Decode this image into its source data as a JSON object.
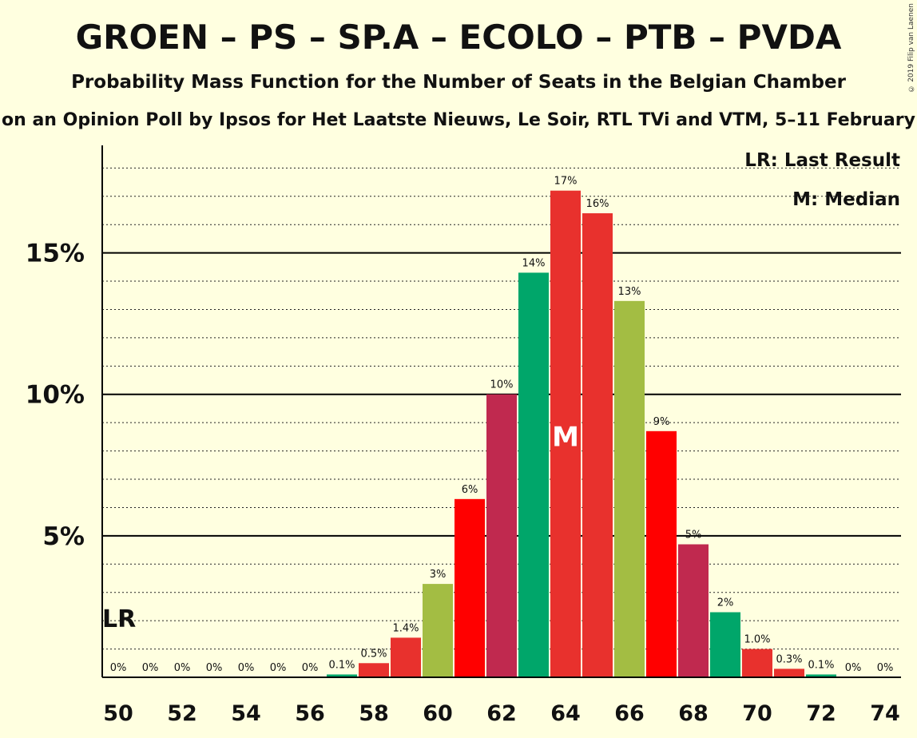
{
  "chart_data": {
    "type": "bar",
    "title": "GROEN – PS – SP.A – ECOLO – PTB – PVDA",
    "subtitle": "Probability Mass Function for the Number of Seats in the Belgian Chamber",
    "source_line": "on an Opinion Poll by Ipsos for Het Laatste Nieuws, Le Soir, RTL TVi and VTM, 5–11 February",
    "copyright": "© 2019 Filip van Laenen",
    "legend": [
      {
        "key": "LR",
        "text": "LR: Last Result"
      },
      {
        "key": "M",
        "text": "M: Median"
      }
    ],
    "x": [
      50,
      51,
      52,
      53,
      54,
      55,
      56,
      57,
      58,
      59,
      60,
      61,
      62,
      63,
      64,
      65,
      66,
      67,
      68,
      69,
      70,
      71,
      72,
      73,
      74
    ],
    "values": [
      0,
      0,
      0,
      0,
      0,
      0,
      0,
      0.1,
      0.5,
      1.4,
      3.3,
      6.3,
      10.0,
      14.3,
      17.2,
      16.4,
      13.3,
      8.7,
      4.7,
      2.3,
      1.0,
      0.3,
      0.1,
      0,
      0
    ],
    "labels": [
      "0%",
      "0%",
      "0%",
      "0%",
      "0%",
      "0%",
      "0%",
      "0.1%",
      "0.5%",
      "1.4%",
      "3%",
      "6%",
      "10%",
      "14%",
      "17%",
      "16%",
      "13%",
      "9%",
      "5%",
      "2%",
      "1.0%",
      "0.3%",
      "0.1%",
      "0%",
      "0%"
    ],
    "colors": [
      "#e8312d",
      "#e8312d",
      "#e8312d",
      "#e8312d",
      "#e8312d",
      "#e8312d",
      "#e8312d",
      "#00a66a",
      "#e8312d",
      "#e8312d",
      "#a3bd43",
      "#ff0000",
      "#c0294f",
      "#00a66a",
      "#e8312d",
      "#e8312d",
      "#a3bd43",
      "#ff0000",
      "#c0294f",
      "#00a66a",
      "#e8312d",
      "#e8312d",
      "#00a66a",
      "#e8312d",
      "#e8312d"
    ],
    "x_tick_labels": [
      "50",
      "52",
      "54",
      "56",
      "58",
      "60",
      "62",
      "64",
      "66",
      "68",
      "70",
      "72",
      "74"
    ],
    "y_ticks": [
      {
        "value": 5,
        "label": "5%"
      },
      {
        "value": 10,
        "label": "10%"
      },
      {
        "value": 15,
        "label": "15%"
      }
    ],
    "ylim": [
      0,
      18.8
    ],
    "minor_grid_step": 1,
    "median_seat": 64,
    "last_result_seat": 50,
    "median_marker": "M",
    "last_result_marker": "LR",
    "median_marker_color": "#ffffff"
  }
}
